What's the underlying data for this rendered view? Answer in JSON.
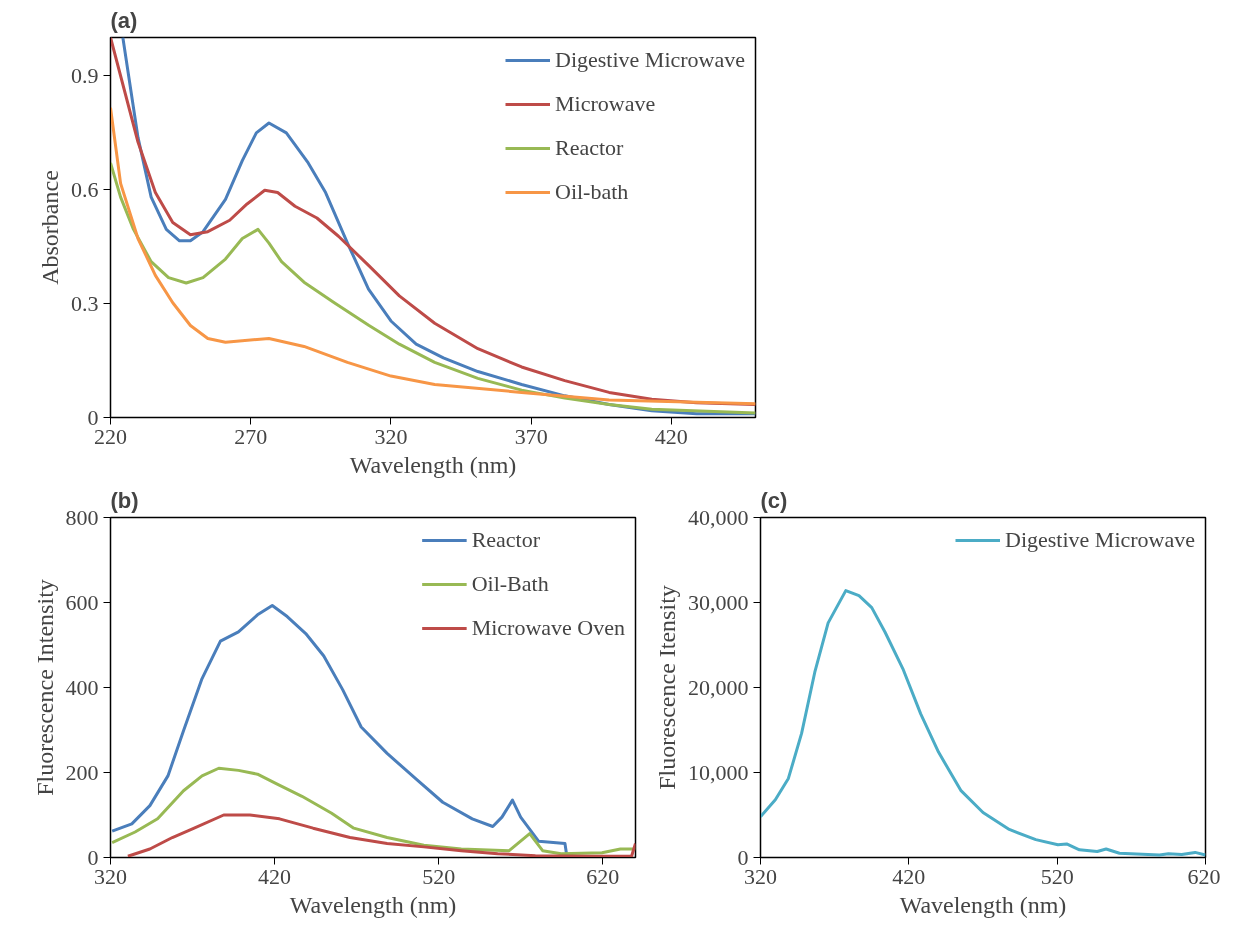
{
  "chart_data": [
    {
      "type": "line",
      "title": "(a)",
      "xlabel": "Wavelength (nm)",
      "ylabel": "Absorbance",
      "xlim": [
        220,
        450
      ],
      "ylim": [
        0,
        1.0
      ],
      "xticks": [
        220,
        270,
        320,
        370,
        420
      ],
      "yticks": [
        0,
        0.3,
        0.6,
        0.9
      ],
      "grid": false,
      "legend": "top right",
      "marker": "none",
      "line_style": "solid",
      "series": [
        {
          "name": "Digestive Microwave",
          "color": "#4a7ebb",
          "x": [
            224.4,
            229.8,
            234.5,
            239.9,
            244.6,
            248.5,
            253,
            261,
            267,
            272,
            276.5,
            282.7,
            290.5,
            296.7,
            304.5,
            312,
            320,
            329,
            338.7,
            351,
            366.6,
            382,
            397.8,
            413,
            429,
            450
          ],
          "values": [
            1.0,
            0.737,
            0.58,
            0.495,
            0.465,
            0.465,
            0.489,
            0.574,
            0.676,
            0.749,
            0.775,
            0.749,
            0.67,
            0.592,
            0.459,
            0.338,
            0.254,
            0.193,
            0.157,
            0.121,
            0.087,
            0.057,
            0.034,
            0.018,
            0.01,
            0.01
          ]
        },
        {
          "name": "Microwave",
          "color": "#be4b48",
          "x": [
            220,
            229.8,
            236,
            242.2,
            248.5,
            254.7,
            262.5,
            268.7,
            275,
            279.6,
            285.8,
            293.6,
            301.3,
            312.2,
            323,
            335.6,
            351,
            366.6,
            382,
            397.8,
            413,
            428.9,
            450
          ],
          "values": [
            1.0,
            0.725,
            0.592,
            0.513,
            0.481,
            0.489,
            0.519,
            0.562,
            0.598,
            0.592,
            0.556,
            0.525,
            0.477,
            0.399,
            0.32,
            0.248,
            0.181,
            0.133,
            0.097,
            0.066,
            0.048,
            0.039,
            0.034
          ]
        },
        {
          "name": "Reactor",
          "color": "#98b954",
          "x": [
            220,
            223.6,
            228.2,
            234.5,
            240.7,
            247,
            253,
            261,
            267,
            272.6,
            276.5,
            281,
            289,
            299.8,
            312.2,
            323,
            335.6,
            351,
            366.6,
            382,
            397.8,
            413,
            450
          ],
          "values": [
            0.67,
            0.58,
            0.495,
            0.41,
            0.368,
            0.354,
            0.368,
            0.417,
            0.471,
            0.495,
            0.459,
            0.41,
            0.356,
            0.302,
            0.242,
            0.193,
            0.145,
            0.103,
            0.072,
            0.051,
            0.034,
            0.022,
            0.012
          ]
        },
        {
          "name": "Oil-bath",
          "color": "#f79646",
          "x": [
            220,
            223.6,
            229.8,
            236,
            242.2,
            248.5,
            254.7,
            261,
            276.5,
            289,
            304.5,
            320,
            335.6,
            366.6,
            397.8,
            450
          ],
          "values": [
            0.815,
            0.616,
            0.471,
            0.374,
            0.302,
            0.242,
            0.208,
            0.198,
            0.208,
            0.187,
            0.145,
            0.109,
            0.087,
            0.066,
            0.046,
            0.036
          ]
        }
      ]
    },
    {
      "type": "line",
      "title": "(b)",
      "xlabel": "Wavelength (nm)",
      "ylabel": "Fluorescence Intensity",
      "xlim": [
        320,
        640
      ],
      "ylim": [
        0,
        800
      ],
      "xticks": [
        320,
        420,
        520,
        620
      ],
      "yticks": [
        0,
        200,
        400,
        600,
        800
      ],
      "grid": false,
      "legend": "top right",
      "marker": "none",
      "line_style": "solid",
      "series": [
        {
          "name": "Reactor",
          "color": "#4a7ebb",
          "x": [
            321,
            333,
            344,
            355,
            364.5,
            375.8,
            387,
            398,
            409.6,
            418.6,
            427.7,
            439,
            450,
            461.5,
            472.8,
            488.6,
            506.7,
            522.5,
            540.5,
            553,
            558.6,
            565,
            570,
            581,
            597,
            598
          ],
          "values": [
            62,
            79,
            122,
            192,
            298,
            421,
            509,
            531,
            571,
            593,
            567,
            527,
            474,
            395,
            307,
            245,
            183,
            130,
            91,
            73,
            95,
            135,
            95,
            38,
            33,
            7
          ]
        },
        {
          "name": "Oil-Bath",
          "color": "#98b954",
          "x": [
            321,
            335,
            348.7,
            364.5,
            375.8,
            386,
            398,
            409.6,
            421,
            436.7,
            454.8,
            468.3,
            488.6,
            511,
            533.8,
            563,
            575.5,
            583.4,
            594.7,
            619.6,
            630.8,
            640
          ],
          "values": [
            35,
            60,
            91,
            157,
            192,
            210,
            205,
            196,
            174,
            144,
            104,
            69,
            47,
            29,
            20,
            16,
            56,
            16,
            9,
            11,
            20,
            20
          ]
        },
        {
          "name": "Microwave Oven",
          "color": "#be4b48",
          "x": [
            330.6,
            344,
            357.7,
            371,
            389,
            405,
            423,
            443.5,
            466,
            488.6,
            511,
            533.8,
            556,
            579,
            612.8,
            637.6,
            640
          ],
          "values": [
            3,
            20,
            47,
            69,
            100,
            100,
            91,
            69,
            47,
            33,
            25,
            16,
            9,
            4,
            3,
            3,
            33
          ]
        }
      ]
    },
    {
      "type": "line",
      "title": "(c)",
      "xlabel": "Wavelength (nm)",
      "ylabel": "Fluorescence Itensity",
      "xlim": [
        320,
        620
      ],
      "ylim": [
        0,
        40000
      ],
      "xticks": [
        320,
        420,
        520,
        620
      ],
      "yticks": [
        0,
        {
          "value": 10000,
          "label": "10,000"
        },
        {
          "value": 20000,
          "label": "20,000"
        },
        {
          "value": 30000,
          "label": "30,000"
        },
        {
          "value": 40000,
          "label": "40,000"
        }
      ],
      "grid": false,
      "legend": "top right",
      "marker": "none",
      "line_style": "solid",
      "series": [
        {
          "name": "Digestive Microwave",
          "color": "#4bacc6",
          "x": [
            320,
            330,
            338.8,
            347.7,
            356.6,
            365.6,
            377.5,
            386.4,
            395,
            404,
            416,
            428,
            440,
            455,
            470,
            487.7,
            505.6,
            520.5,
            526.4,
            535,
            547,
            553,
            562,
            589,
            595,
            604,
            613,
            620
          ],
          "values": [
            4800,
            6800,
            9300,
            14600,
            21800,
            27600,
            31400,
            30800,
            29400,
            26500,
            22200,
            16900,
            12400,
            7900,
            5300,
            3300,
            2100,
            1500,
            1600,
            900,
            700,
            1000,
            500,
            300,
            450,
            350,
            600,
            300
          ]
        }
      ]
    }
  ]
}
